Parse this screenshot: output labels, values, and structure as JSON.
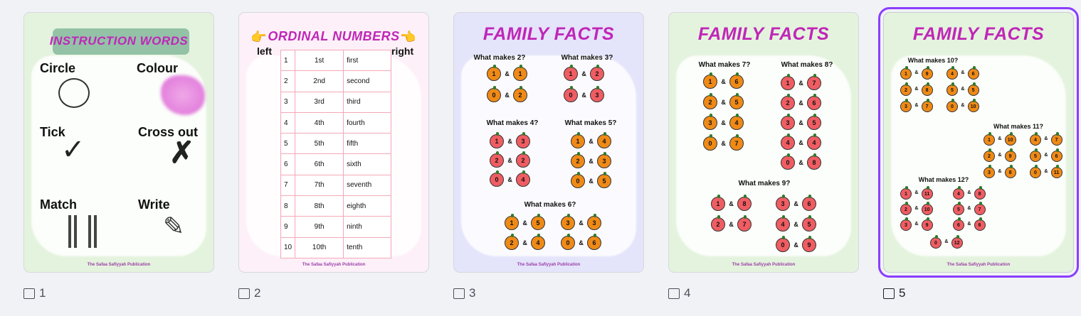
{
  "colors": {
    "accent": "#8b3dff",
    "title": "#c026b8"
  },
  "footer": "The Safaa Safiyyah Publication",
  "pages": [
    {
      "number": "1",
      "icon": "resize-icon",
      "title": "INSTRUCTION WORDS",
      "background": "#e4f3dd",
      "words": [
        "Circle",
        "Colour",
        "Tick",
        "Cross out",
        "Match",
        "Write"
      ]
    },
    {
      "number": "2",
      "icon": "resize-icon",
      "title": "ORDINAL NUMBERS",
      "background": "#fdf0f8",
      "left": "left",
      "right": "right",
      "rows": [
        [
          "1",
          "1st",
          "first"
        ],
        [
          "2",
          "2nd",
          "second"
        ],
        [
          "3",
          "3rd",
          "third"
        ],
        [
          "4",
          "4th",
          "fourth"
        ],
        [
          "5",
          "5th",
          "fifth"
        ],
        [
          "6",
          "6th",
          "sixth"
        ],
        [
          "7",
          "7th",
          "seventh"
        ],
        [
          "8",
          "8th",
          "eighth"
        ],
        [
          "9",
          "9th",
          "ninth"
        ],
        [
          "10",
          "10th",
          "tenth"
        ]
      ]
    },
    {
      "number": "3",
      "icon": "resize-icon",
      "title": "FAMILY FACTS",
      "background": "#e4e4fb",
      "groups": [
        {
          "title": "What makes 2?",
          "fruit": "orange",
          "cols": [
            [
              [
                "1",
                "1"
              ],
              [
                "0",
                "2"
              ]
            ]
          ]
        },
        {
          "title": "What makes 3?",
          "fruit": "apple",
          "cols": [
            [
              [
                "1",
                "2"
              ],
              [
                "0",
                "3"
              ]
            ]
          ]
        },
        {
          "title": "What makes 4?",
          "fruit": "apple",
          "cols": [
            [
              [
                "1",
                "3"
              ],
              [
                "2",
                "2"
              ],
              [
                "0",
                "4"
              ]
            ]
          ]
        },
        {
          "title": "What makes 5?",
          "fruit": "orange",
          "cols": [
            [
              [
                "1",
                "4"
              ],
              [
                "2",
                "3"
              ],
              [
                "0",
                "5"
              ]
            ]
          ]
        },
        {
          "title": "What makes 6?",
          "fruit": "orange",
          "cols": [
            [
              [
                "1",
                "5"
              ],
              [
                "2",
                "4"
              ]
            ],
            [
              [
                "3",
                "3"
              ],
              [
                "0",
                "6"
              ]
            ]
          ]
        }
      ]
    },
    {
      "number": "4",
      "icon": "resize-icon",
      "title": "FAMILY FACTS",
      "background": "#e4f3dd",
      "groups": [
        {
          "title": "What makes 7?",
          "fruit": "orange",
          "cols": [
            [
              [
                "1",
                "6"
              ],
              [
                "2",
                "5"
              ],
              [
                "3",
                "4"
              ],
              [
                "0",
                "7"
              ]
            ]
          ]
        },
        {
          "title": "What makes 8?",
          "fruit": "apple",
          "cols": [
            [
              [
                "1",
                "7"
              ],
              [
                "2",
                "6"
              ],
              [
                "3",
                "5"
              ],
              [
                "4",
                "4"
              ],
              [
                "0",
                "8"
              ]
            ]
          ]
        },
        {
          "title": "What makes 9?",
          "fruit": "apple",
          "cols": [
            [
              [
                "1",
                "8"
              ],
              [
                "2",
                "7"
              ]
            ],
            [
              [
                "3",
                "6"
              ],
              [
                "4",
                "5"
              ],
              [
                "0",
                "9"
              ]
            ]
          ]
        }
      ]
    },
    {
      "number": "5",
      "icon": "resize-icon",
      "title": "FAMILY FACTS",
      "background": "#e4f3dd",
      "selected": true,
      "groups": [
        {
          "title": "What makes 10?",
          "fruit": "orange",
          "cols": [
            [
              [
                "1",
                "9"
              ],
              [
                "2",
                "8"
              ],
              [
                "3",
                "7"
              ]
            ],
            [
              [
                "4",
                "6"
              ],
              [
                "5",
                "5"
              ],
              [
                "0",
                "10"
              ]
            ]
          ]
        },
        {
          "title": "What makes 11?",
          "fruit": "orange",
          "cols": [
            [
              [
                "1",
                "10"
              ],
              [
                "2",
                "9"
              ],
              [
                "3",
                "8"
              ]
            ],
            [
              [
                "4",
                "7"
              ],
              [
                "5",
                "6"
              ],
              [
                "0",
                "11"
              ]
            ]
          ]
        },
        {
          "title": "What makes 12?",
          "fruit": "apple",
          "cols": [
            [
              [
                "1",
                "11"
              ],
              [
                "2",
                "10"
              ],
              [
                "3",
                "9"
              ]
            ],
            [
              [
                "4",
                "8"
              ],
              [
                "5",
                "7"
              ],
              [
                "6",
                "6"
              ]
            ],
            [
              [
                "0",
                "12"
              ]
            ]
          ]
        }
      ]
    }
  ]
}
